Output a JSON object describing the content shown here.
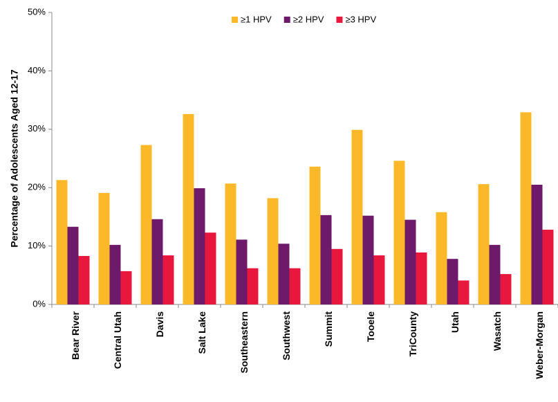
{
  "chart_data": {
    "type": "bar",
    "y_label": "Percentage of Adolescents Aged 12-17",
    "categories": [
      "Bear River",
      "Central Utah",
      "Davis",
      "Salt Lake",
      "Southeastern",
      "Southwest",
      "Summit",
      "Tooele",
      "TriCounty",
      "Utah",
      "Wasatch",
      "Weber-Morgan"
    ],
    "series": [
      {
        "name": "≥1 HPV",
        "color": "#fbb829",
        "values": [
          21.3,
          19.1,
          27.3,
          32.6,
          20.7,
          18.2,
          23.6,
          29.9,
          24.6,
          15.8,
          20.6,
          32.9
        ]
      },
      {
        "name": "≥2 HPV",
        "color": "#6e1a6b",
        "values": [
          13.3,
          10.2,
          14.6,
          19.9,
          11.1,
          10.4,
          15.3,
          15.2,
          14.5,
          7.8,
          10.2,
          20.5
        ]
      },
      {
        "name": "≥3 HPV",
        "color": "#e8173e",
        "values": [
          8.3,
          5.7,
          8.4,
          12.3,
          6.2,
          6.2,
          9.5,
          8.4,
          8.9,
          4.1,
          5.2,
          12.8
        ]
      }
    ],
    "ylim": [
      0,
      50
    ],
    "yticks": [
      {
        "value": 0,
        "label": "0%"
      },
      {
        "value": 10,
        "label": "10%"
      },
      {
        "value": 20,
        "label": "20%"
      },
      {
        "value": 30,
        "label": "30%"
      },
      {
        "value": 40,
        "label": "40%"
      },
      {
        "value": 50,
        "label": "50%"
      }
    ],
    "legend": "top"
  }
}
